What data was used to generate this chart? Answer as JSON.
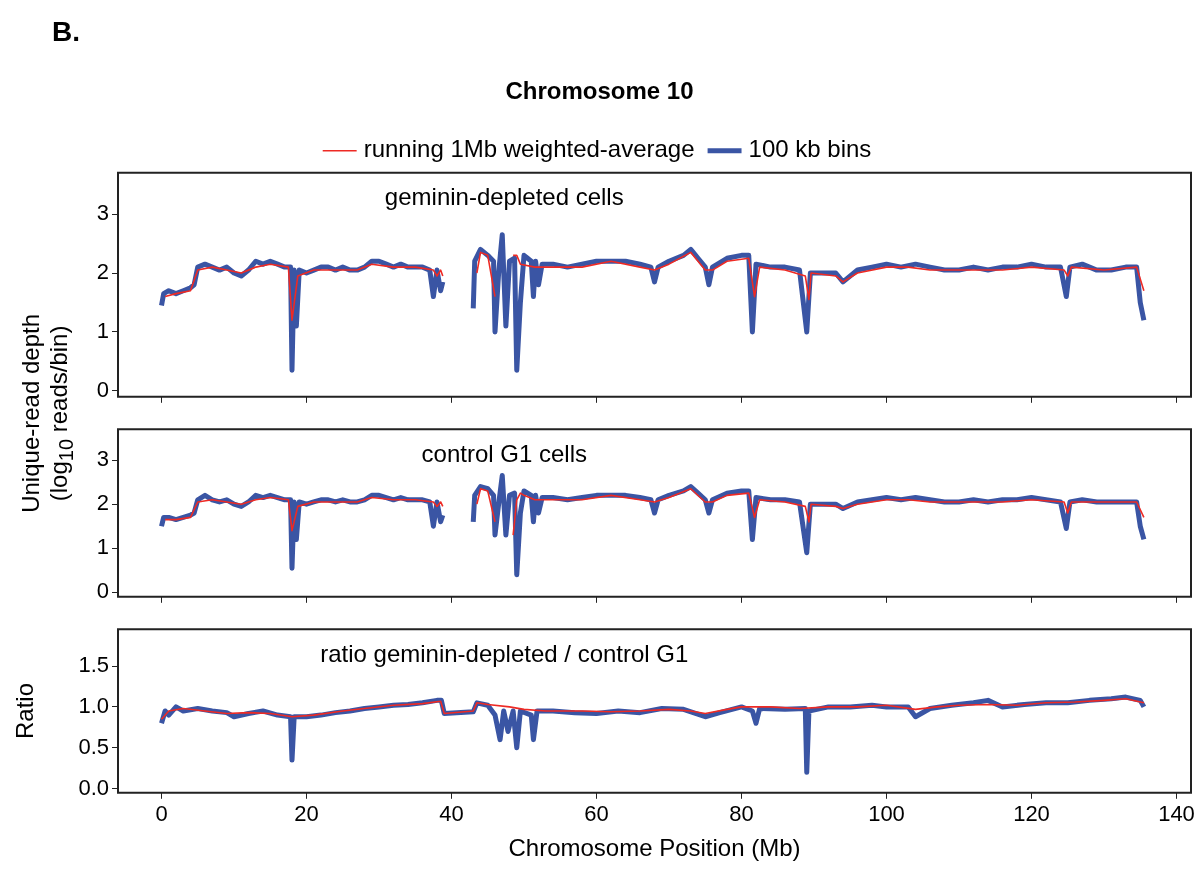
{
  "chart_data": [
    {
      "type": "line",
      "title": "Chromosome 10",
      "subtitle": "geminin-depleted cells",
      "annotations": [
        "B."
      ],
      "ylabel": "Unique-read depth (log$_{10}$ reads/bin)",
      "legend": "top",
      "tick_labels": "y",
      "xlim": [
        -6,
        142
      ],
      "xticks": [
        0,
        20,
        40,
        60,
        80,
        100,
        120,
        140
      ],
      "ylim": [
        -0.1,
        3.7
      ],
      "yticks": [
        0,
        1,
        2,
        3
      ],
      "series": [
        {
          "name": "100 kb bins",
          "color": "#3a55a4",
          "x": [
            0,
            0.3,
            1,
            2,
            3,
            4,
            4.5,
            5,
            6,
            7,
            8,
            9,
            10,
            11,
            12,
            13,
            14,
            15,
            16,
            17,
            17.8,
            18,
            18.3,
            18.6,
            19,
            20,
            21,
            22,
            23,
            24,
            25,
            26,
            27,
            28,
            29,
            30,
            31,
            32,
            33,
            34,
            35,
            36,
            37,
            37.5,
            38,
            38.5,
            38.8,
            39,
            43,
            43.2,
            44,
            45,
            45.8,
            46,
            46.5,
            47,
            47.5,
            48,
            48.7,
            49,
            49.5,
            50,
            51,
            51.3,
            51.6,
            52,
            52.5,
            54,
            56,
            58,
            60,
            62,
            64,
            66,
            67.5,
            68,
            68.5,
            70,
            72,
            73,
            74,
            75,
            75.5,
            76,
            78,
            80,
            81,
            81.5,
            82,
            84,
            86,
            88,
            89,
            89.5,
            91,
            93,
            94,
            96,
            98,
            100,
            102,
            104,
            106,
            108,
            110,
            112,
            114,
            116,
            118,
            120,
            122,
            124,
            124.8,
            125.3,
            127,
            129,
            131,
            133,
            134.5,
            135,
            135.5
          ],
          "values": [
            1.45,
            1.65,
            1.7,
            1.65,
            1.7,
            1.75,
            1.8,
            2.1,
            2.15,
            2.1,
            2.05,
            2.1,
            2.0,
            1.95,
            2.05,
            2.2,
            2.15,
            2.2,
            2.15,
            2.1,
            2.1,
            0.35,
            2.05,
            1.1,
            2.05,
            2.0,
            2.05,
            2.1,
            2.1,
            2.05,
            2.1,
            2.05,
            2.05,
            2.1,
            2.2,
            2.2,
            2.15,
            2.1,
            2.15,
            2.1,
            2.1,
            2.1,
            2.05,
            1.6,
            2.05,
            1.7,
            1.85,
            null,
            1.4,
            2.2,
            2.4,
            2.3,
            2.2,
            1.0,
            2.0,
            2.65,
            1.1,
            2.2,
            2.25,
            0.35,
            1.5,
            2.3,
            2.2,
            1.6,
            2.2,
            1.8,
            2.15,
            2.15,
            2.1,
            2.15,
            2.2,
            2.2,
            2.2,
            2.15,
            2.1,
            1.85,
            2.1,
            2.2,
            2.3,
            2.4,
            2.25,
            2.1,
            1.8,
            2.1,
            2.25,
            2.3,
            2.3,
            1.0,
            2.15,
            2.1,
            2.1,
            2.05,
            1.0,
            2.0,
            2.0,
            2.0,
            1.85,
            2.05,
            2.1,
            2.15,
            2.1,
            2.15,
            2.1,
            2.05,
            2.05,
            2.1,
            2.05,
            2.1,
            2.1,
            2.15,
            2.1,
            2.1,
            1.6,
            2.1,
            2.15,
            2.05,
            2.05,
            2.1,
            2.1,
            1.5,
            1.2
          ]
        },
        {
          "name": "running 1Mb weighted-average",
          "color": "#ee2a24",
          "x": [
            0.5,
            2,
            4,
            5,
            7,
            9,
            11,
            13,
            15,
            17.5,
            18,
            18.8,
            21,
            24,
            27,
            29,
            32,
            35,
            37.5,
            38,
            38.5,
            38.8,
            39,
            43.5,
            44,
            45,
            46,
            46.5,
            48.5,
            49,
            49.5,
            51.5,
            54,
            58,
            62,
            66,
            68,
            70,
            73,
            75,
            76,
            78,
            81,
            81.8,
            82.5,
            86,
            88.8,
            89.3,
            89.6,
            93,
            94,
            96,
            100,
            103,
            106,
            110,
            113,
            116,
            120,
            124.5,
            125,
            125.5,
            130,
            134.5,
            135.5
          ],
          "values": [
            1.6,
            1.65,
            1.7,
            2.05,
            2.1,
            2.05,
            2.0,
            2.1,
            2.15,
            2.1,
            1.2,
            1.95,
            2.05,
            2.05,
            2.05,
            2.15,
            2.1,
            2.1,
            2.05,
            1.95,
            2.05,
            1.95,
            null,
            2.0,
            2.35,
            2.3,
            1.6,
            null,
            2.3,
            2.3,
            2.15,
            2.1,
            2.1,
            2.1,
            2.2,
            2.1,
            2.05,
            2.15,
            2.35,
            2.05,
            2.05,
            2.2,
            2.25,
            1.6,
            2.1,
            2.05,
            1.95,
            1.55,
            2.0,
            1.95,
            1.85,
            2.0,
            2.1,
            2.1,
            2.05,
            2.05,
            2.05,
            2.05,
            2.1,
            2.05,
            1.95,
            2.1,
            2.05,
            2.1,
            1.7
          ]
        }
      ]
    },
    {
      "type": "line",
      "subtitle": "control G1 cells",
      "tick_labels": "y",
      "xlim": [
        -6,
        142
      ],
      "xticks": [
        0,
        20,
        40,
        60,
        80,
        100,
        120,
        140
      ],
      "ylim": [
        -0.1,
        3.7
      ],
      "yticks": [
        0,
        1,
        2,
        3
      ],
      "series": [
        {
          "color": "#3a55a4",
          "x": [
            0,
            0.3,
            1,
            2,
            3,
            4,
            4.5,
            5,
            6,
            7,
            8,
            9,
            10,
            11,
            12,
            13,
            14,
            15,
            16,
            17,
            17.8,
            18,
            18.3,
            18.6,
            19,
            20,
            21,
            22,
            23,
            24,
            25,
            26,
            27,
            28,
            29,
            30,
            31,
            32,
            33,
            34,
            35,
            36,
            37,
            37.5,
            38,
            38.5,
            38.8,
            39,
            43,
            43.2,
            44,
            45,
            45.8,
            46,
            46.5,
            47,
            47.5,
            48,
            48.7,
            49,
            49.5,
            50,
            51,
            51.3,
            51.6,
            52,
            52.5,
            54,
            56,
            58,
            60,
            62,
            64,
            66,
            67.5,
            68,
            68.5,
            70,
            72,
            73,
            74,
            75,
            75.5,
            76,
            78,
            80,
            81,
            81.5,
            82,
            84,
            86,
            88,
            89,
            89.5,
            91,
            93,
            94,
            96,
            98,
            100,
            102,
            104,
            106,
            108,
            110,
            112,
            114,
            116,
            118,
            120,
            122,
            124,
            124.8,
            125.3,
            127,
            129,
            131,
            133,
            134.5,
            135,
            135.5
          ],
          "values": [
            1.5,
            1.7,
            1.7,
            1.65,
            1.7,
            1.75,
            1.8,
            2.1,
            2.2,
            2.1,
            2.05,
            2.1,
            2.0,
            1.95,
            2.05,
            2.2,
            2.15,
            2.2,
            2.15,
            2.1,
            2.1,
            0.55,
            2.05,
            1.2,
            2.05,
            2.0,
            2.05,
            2.1,
            2.1,
            2.05,
            2.1,
            2.05,
            2.05,
            2.1,
            2.2,
            2.2,
            2.15,
            2.1,
            2.15,
            2.1,
            2.1,
            2.1,
            2.05,
            1.5,
            2.05,
            1.6,
            1.75,
            null,
            1.6,
            2.2,
            2.4,
            2.35,
            2.2,
            1.3,
            2.0,
            2.65,
            1.3,
            2.2,
            2.25,
            0.4,
            1.8,
            2.3,
            2.2,
            1.6,
            2.2,
            1.8,
            2.15,
            2.15,
            2.1,
            2.15,
            2.2,
            2.2,
            2.2,
            2.15,
            2.1,
            1.8,
            2.1,
            2.2,
            2.3,
            2.4,
            2.25,
            2.1,
            1.8,
            2.1,
            2.25,
            2.3,
            2.3,
            1.2,
            2.15,
            2.1,
            2.1,
            2.05,
            0.9,
            2.0,
            2.0,
            2.0,
            1.9,
            2.05,
            2.1,
            2.15,
            2.1,
            2.15,
            2.1,
            2.05,
            2.05,
            2.1,
            2.05,
            2.1,
            2.1,
            2.15,
            2.1,
            2.05,
            1.45,
            2.05,
            2.1,
            2.05,
            2.05,
            2.05,
            2.05,
            1.5,
            1.2
          ]
        },
        {
          "color": "#ee2a24",
          "x": [
            0.5,
            2,
            4,
            5,
            7,
            9,
            11,
            13,
            15,
            17.5,
            18,
            18.8,
            21,
            24,
            27,
            29,
            32,
            35,
            37.5,
            38,
            38.5,
            38.8,
            39,
            43.5,
            44,
            45,
            46,
            46.5,
            48.5,
            49,
            49.5,
            50,
            51.5,
            54,
            58,
            62,
            66,
            68,
            70,
            73,
            75,
            76,
            78,
            81,
            81.8,
            82.5,
            86,
            88.8,
            89.3,
            89.6,
            93,
            94,
            96,
            100,
            103,
            106,
            110,
            113,
            116,
            120,
            124.5,
            125,
            125.5,
            130,
            134.5,
            135.5
          ],
          "values": [
            1.65,
            1.65,
            1.7,
            2.05,
            2.1,
            2.05,
            2.0,
            2.1,
            2.15,
            2.1,
            1.4,
            1.95,
            2.05,
            2.05,
            2.05,
            2.15,
            2.1,
            2.1,
            2.05,
            1.95,
            2.05,
            1.95,
            null,
            2.0,
            2.35,
            2.3,
            1.6,
            null,
            1.3,
            2.1,
            2.25,
            2.2,
            2.1,
            2.1,
            2.1,
            2.2,
            2.1,
            2.05,
            2.15,
            2.35,
            2.05,
            2.05,
            2.2,
            2.25,
            1.7,
            2.1,
            2.05,
            1.95,
            1.6,
            2.0,
            1.95,
            1.9,
            2.0,
            2.1,
            2.1,
            2.05,
            2.05,
            2.05,
            2.05,
            2.1,
            2.05,
            1.8,
            2.05,
            2.05,
            2.05,
            1.7
          ]
        }
      ]
    },
    {
      "type": "line",
      "subtitle": "ratio geminin-depleted / control G1",
      "xlabel": "Chromosome Position (Mb)",
      "ylabel": "Ratio",
      "xlim": [
        -6,
        142
      ],
      "xticks": [
        0,
        20,
        40,
        60,
        80,
        100,
        120,
        140
      ],
      "ylim": [
        -0.05,
        1.95
      ],
      "yticks": [
        {
          "value": 0,
          "label": "0.0"
        },
        0.5,
        {
          "value": 1,
          "label": "1.0"
        },
        1.5
      ],
      "series": [
        {
          "color": "#3a55a4",
          "x": [
            0,
            0.5,
            1,
            2,
            3,
            5,
            7,
            9,
            10,
            12,
            14,
            16,
            17.8,
            18,
            18.3,
            20,
            22,
            24,
            26,
            28,
            30,
            32,
            34,
            36,
            38,
            38.6,
            39,
            43,
            43.5,
            45,
            46,
            46.7,
            47.2,
            47.8,
            48.5,
            49,
            49.5,
            51,
            51.3,
            51.8,
            54,
            57,
            60,
            63,
            66,
            69,
            72,
            75,
            77,
            80,
            81.5,
            82,
            82.5,
            86,
            88.8,
            89,
            89.3,
            92,
            95,
            98,
            100,
            103,
            104,
            106,
            109,
            112,
            114,
            116,
            119,
            122,
            125,
            128,
            131,
            133,
            135,
            135.5
          ],
          "values": [
            0.8,
            0.95,
            0.9,
            1.0,
            0.95,
            0.98,
            0.95,
            0.93,
            0.88,
            0.92,
            0.95,
            0.9,
            0.88,
            0.35,
            0.88,
            0.88,
            0.9,
            0.93,
            0.95,
            0.98,
            1.0,
            1.02,
            1.03,
            1.05,
            1.08,
            1.08,
            0.92,
            0.94,
            1.05,
            1.02,
            0.9,
            0.6,
            0.95,
            0.7,
            0.95,
            0.5,
            0.95,
            0.9,
            0.6,
            0.95,
            0.95,
            0.93,
            0.92,
            0.95,
            0.93,
            0.98,
            0.97,
            0.88,
            0.93,
            1.0,
            0.95,
            0.8,
            0.98,
            0.97,
            0.98,
            0.2,
            0.95,
            1.0,
            1.0,
            1.02,
            1.0,
            1.0,
            0.88,
            0.98,
            1.02,
            1.05,
            1.08,
            1.0,
            1.03,
            1.05,
            1.05,
            1.08,
            1.1,
            1.12,
            1.08,
            1.0
          ]
        },
        {
          "color": "#ee2a24",
          "x": [
            0,
            1,
            3,
            6,
            9,
            12,
            15,
            18,
            21,
            25,
            28,
            32,
            36,
            38.5,
            39,
            43,
            43.5,
            45,
            48,
            50,
            53,
            58,
            62,
            66,
            70,
            73,
            75,
            78,
            80,
            84,
            88,
            92,
            96,
            100,
            104,
            107,
            110,
            114,
            118,
            122,
            126,
            130,
            133,
            135.5
          ],
          "values": [
            0.85,
            0.95,
            0.98,
            0.95,
            0.92,
            0.93,
            0.92,
            0.88,
            0.9,
            0.95,
            0.98,
            1.02,
            1.04,
            1.07,
            0.92,
            0.95,
            1.05,
            1.03,
            1.0,
            0.97,
            0.95,
            0.95,
            0.94,
            0.95,
            0.97,
            0.95,
            0.92,
            0.97,
            1.0,
            1.0,
            0.98,
            1.0,
            1.0,
            1.02,
            0.97,
            1.0,
            1.02,
            1.03,
            1.02,
            1.05,
            1.06,
            1.08,
            1.1,
            1.05
          ]
        }
      ]
    }
  ]
}
